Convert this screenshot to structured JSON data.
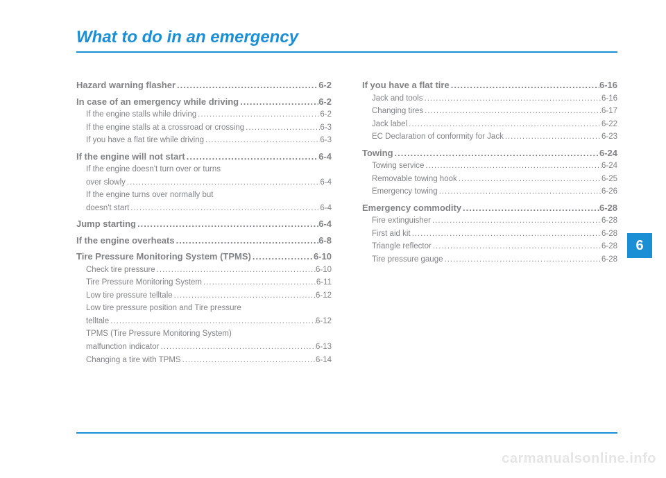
{
  "title": "What to do in an emergency",
  "side_tab": "6",
  "watermark": "carmanualsonline.info",
  "colors": {
    "accent": "#1b8fd6",
    "text": "#808285",
    "watermark": "#e5e5e5",
    "background": "#ffffff"
  },
  "left": [
    {
      "type": "main",
      "label": "Hazard warning flasher ",
      "page": "6-2"
    },
    {
      "type": "main",
      "label": "In case of an emergency while driving ",
      "page": "6-2"
    },
    {
      "type": "sub",
      "label": "If the engine stalls while driving ",
      "page": "6-2"
    },
    {
      "type": "sub",
      "label": "If the engine stalls at a crossroad or crossing ",
      "page": "6-3"
    },
    {
      "type": "sub",
      "label": "If you have a flat tire while driving",
      "page": "6-3"
    },
    {
      "type": "main",
      "label": "If the engine will not start ",
      "page": "6-4"
    },
    {
      "type": "sub-wrap",
      "label1": "If the engine doesn't turn over or turns",
      "label2": "over slowly ",
      "page": "6-4"
    },
    {
      "type": "sub-wrap",
      "label1": "If the engine turns over normally but",
      "label2": "doesn't start ",
      "page": "6-4"
    },
    {
      "type": "main",
      "label": "Jump starting ",
      "page": "6-4"
    },
    {
      "type": "main",
      "label": "If the engine overheats ",
      "page": "6-8"
    },
    {
      "type": "main",
      "label": "Tire Pressure Monitoring System (TPMS)",
      "page": "6-10"
    },
    {
      "type": "sub",
      "label": "Check tire pressure ",
      "page": "6-10"
    },
    {
      "type": "sub",
      "label": "Tire Pressure Monitoring System ",
      "page": "6-11"
    },
    {
      "type": "sub",
      "label": "Low tire pressure telltale ",
      "page": "6-12"
    },
    {
      "type": "sub-wrap",
      "label1": "Low tire pressure position and Tire pressure",
      "label2": "telltale ",
      "page": "6-12"
    },
    {
      "type": "sub-wrap",
      "label1": "TPMS (Tire Pressure Monitoring System)",
      "label2": "malfunction indicator ",
      "page": "6-13"
    },
    {
      "type": "sub",
      "label": "Changing a tire with TPMS",
      "page": "6-14"
    }
  ],
  "right": [
    {
      "type": "main",
      "label": "If you have a flat tire",
      "page": "6-16"
    },
    {
      "type": "sub",
      "label": "Jack and tools ",
      "page": "6-16"
    },
    {
      "type": "sub",
      "label": "Changing tires ",
      "page": "6-17"
    },
    {
      "type": "sub",
      "label": "Jack label",
      "page": "6-22"
    },
    {
      "type": "sub",
      "label": "EC Declaration of conformity for Jack",
      "page": "6-23"
    },
    {
      "type": "main",
      "label": "Towing ",
      "page": "6-24"
    },
    {
      "type": "sub",
      "label": "Towing service ",
      "page": "6-24"
    },
    {
      "type": "sub",
      "label": "Removable towing hook ",
      "page": "6-25"
    },
    {
      "type": "sub",
      "label": "Emergency towing ",
      "page": "6-26"
    },
    {
      "type": "main",
      "label": "Emergency commodity ",
      "page": "6-28"
    },
    {
      "type": "sub",
      "label": "Fire extinguisher ",
      "page": "6-28"
    },
    {
      "type": "sub",
      "label": "First aid kit ",
      "page": "6-28"
    },
    {
      "type": "sub",
      "label": "Triangle reflector ",
      "page": "6-28"
    },
    {
      "type": "sub",
      "label": "Tire pressure gauge ",
      "page": "6-28"
    }
  ]
}
